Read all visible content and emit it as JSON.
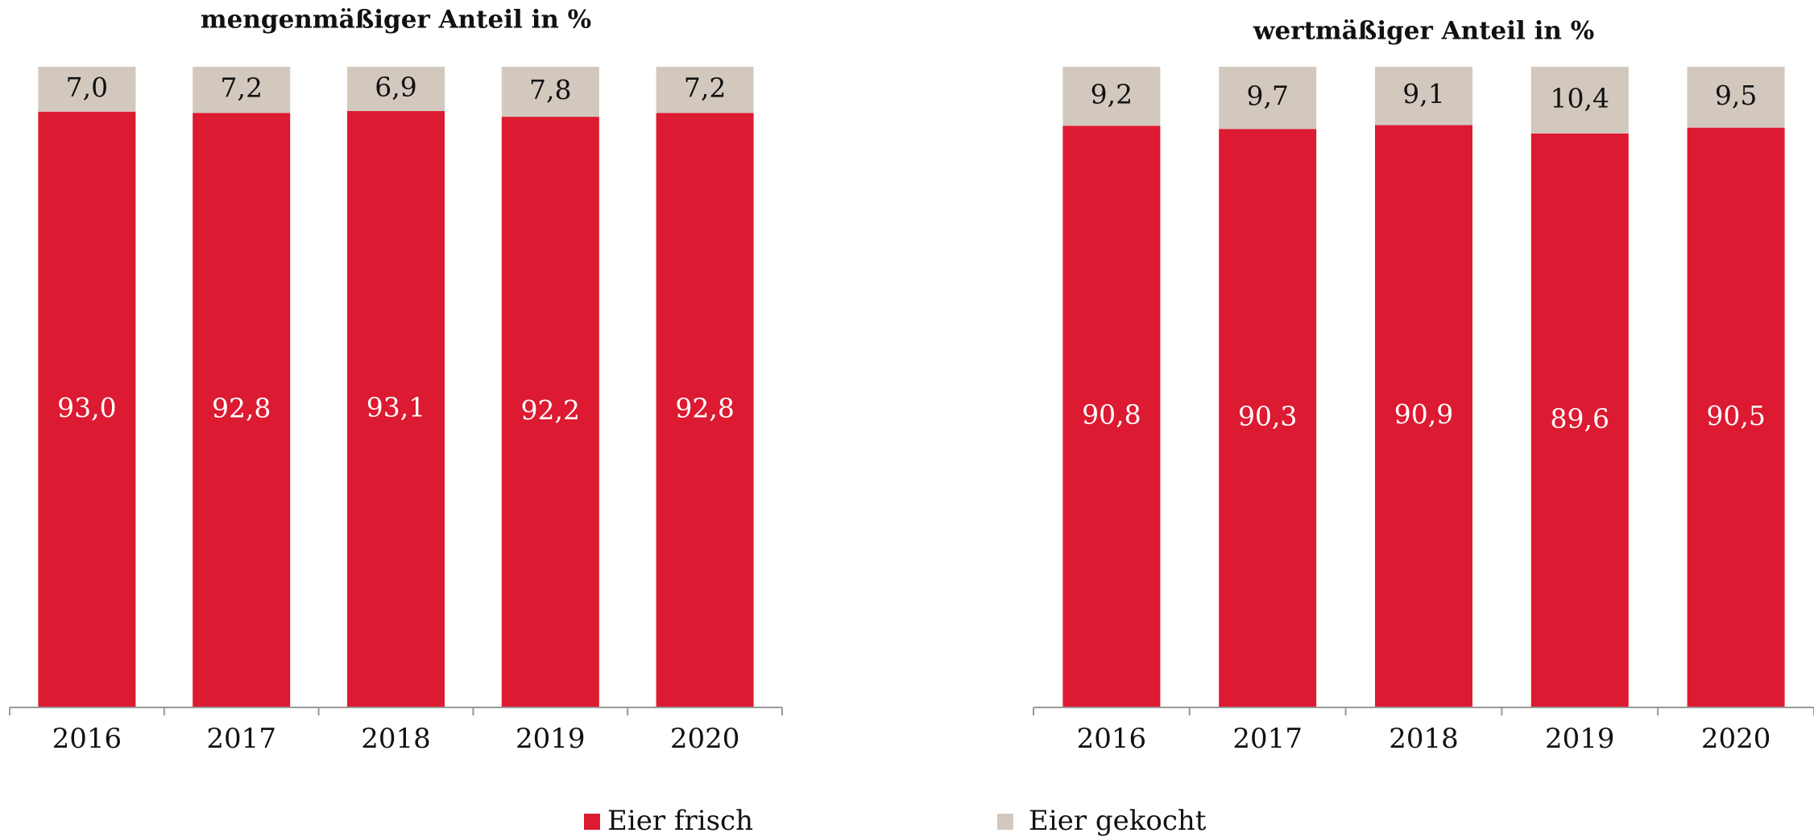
{
  "chart_data": [
    {
      "type": "stacked_bar",
      "title": "mengenmäßiger Anteil in %",
      "categories": [
        "2016",
        "2017",
        "2018",
        "2019",
        "2020"
      ],
      "ylim": [
        0,
        100
      ],
      "series": [
        {
          "name": "Eier frisch",
          "color": "#dc1a31",
          "values": [
            93.0,
            92.8,
            93.1,
            92.2,
            92.8
          ],
          "value_labels": [
            "93,0",
            "92,8",
            "93,1",
            "92,2",
            "92,8"
          ]
        },
        {
          "name": "Eier gekocht",
          "color": "#d3c8be",
          "values": [
            7.0,
            7.2,
            6.9,
            7.8,
            7.2
          ],
          "value_labels": [
            "7,0",
            "7,2",
            "6,9",
            "7,8",
            "7,2"
          ]
        }
      ]
    },
    {
      "type": "stacked_bar",
      "title": "wertmäßiger Anteil in %",
      "categories": [
        "2016",
        "2017",
        "2018",
        "2019",
        "2020"
      ],
      "ylim": [
        0,
        100
      ],
      "series": [
        {
          "name": "Eier frisch",
          "color": "#dc1a31",
          "values": [
            90.8,
            90.3,
            90.9,
            89.6,
            90.5
          ],
          "value_labels": [
            "90,8",
            "90,3",
            "90,9",
            "89,6",
            "90,5"
          ]
        },
        {
          "name": "Eier gekocht",
          "color": "#d3c8be",
          "values": [
            9.2,
            9.7,
            9.1,
            10.4,
            9.5
          ],
          "value_labels": [
            "9,2",
            "9,7",
            "9,1",
            "10,4",
            "9,5"
          ]
        }
      ]
    }
  ]
}
